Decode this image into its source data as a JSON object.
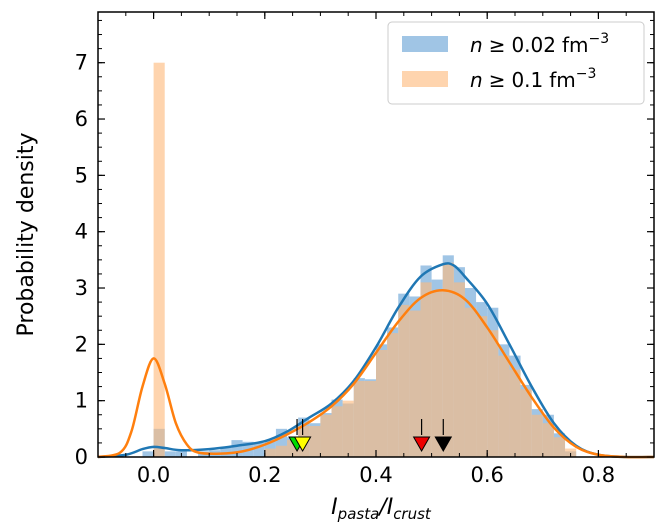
{
  "chart_data": {
    "type": "histogram+kde",
    "xlabel": {
      "main": "I",
      "sub1": "pasta",
      "slash": "/I",
      "sub2": "crust"
    },
    "ylabel": "Probability density",
    "xlim": [
      -0.1,
      0.9
    ],
    "ylim": [
      0,
      7.9
    ],
    "xticks": [
      0.0,
      0.2,
      0.4,
      0.6,
      0.8
    ],
    "xtick_labels": [
      "0.0",
      "0.2",
      "0.4",
      "0.6",
      "0.8"
    ],
    "yticks": [
      0,
      1,
      2,
      3,
      4,
      5,
      6,
      7
    ],
    "ytick_labels": [
      "0",
      "1",
      "2",
      "3",
      "4",
      "5",
      "6",
      "7"
    ],
    "legend": {
      "position": "top-right",
      "entries": [
        {
          "math": "n",
          "rel": "≥",
          "value": "0.02",
          "unit": "fm",
          "exp": "−3"
        },
        {
          "math": "n",
          "rel": "≥",
          "value": "0.1",
          "unit": "fm",
          "exp": "−3"
        }
      ]
    },
    "series": [
      {
        "name": "n ≥ 0.02 fm^-3",
        "color": "#1f77b4",
        "fill": "#8fbbe0",
        "bin_width": 0.02,
        "bins": [
          [
            -0.02,
            0.0,
            0.1
          ],
          [
            0.0,
            0.02,
            0.5
          ],
          [
            0.02,
            0.04,
            0.1
          ],
          [
            0.04,
            0.06,
            0.1
          ],
          [
            0.08,
            0.1,
            0.1
          ],
          [
            0.1,
            0.12,
            0.12
          ],
          [
            0.12,
            0.14,
            0.16
          ],
          [
            0.14,
            0.16,
            0.3
          ],
          [
            0.16,
            0.18,
            0.27
          ],
          [
            0.18,
            0.2,
            0.25
          ],
          [
            0.2,
            0.22,
            0.3
          ],
          [
            0.22,
            0.24,
            0.5
          ],
          [
            0.24,
            0.26,
            0.35
          ],
          [
            0.26,
            0.28,
            0.7
          ],
          [
            0.28,
            0.3,
            0.6
          ],
          [
            0.3,
            0.32,
            0.78
          ],
          [
            0.32,
            0.34,
            1.02
          ],
          [
            0.34,
            0.36,
            0.95
          ],
          [
            0.36,
            0.38,
            1.4
          ],
          [
            0.38,
            0.4,
            1.38
          ],
          [
            0.4,
            0.42,
            2.0
          ],
          [
            0.42,
            0.44,
            2.3
          ],
          [
            0.44,
            0.46,
            2.9
          ],
          [
            0.46,
            0.48,
            2.85
          ],
          [
            0.48,
            0.5,
            3.4
          ],
          [
            0.5,
            0.52,
            3.15
          ],
          [
            0.52,
            0.54,
            3.58
          ],
          [
            0.54,
            0.56,
            3.37
          ],
          [
            0.56,
            0.58,
            3.0
          ],
          [
            0.58,
            0.6,
            2.75
          ],
          [
            0.6,
            0.62,
            2.65
          ],
          [
            0.62,
            0.64,
            2.0
          ],
          [
            0.64,
            0.66,
            1.8
          ],
          [
            0.66,
            0.68,
            1.28
          ],
          [
            0.68,
            0.7,
            0.85
          ],
          [
            0.7,
            0.72,
            0.75
          ],
          [
            0.72,
            0.74,
            0.42
          ],
          [
            0.74,
            0.76,
            0.1
          ]
        ],
        "kde": {
          "x": [
            -0.1,
            -0.05,
            -0.02,
            0.0,
            0.02,
            0.05,
            0.1,
            0.15,
            0.2,
            0.24,
            0.28,
            0.32,
            0.36,
            0.4,
            0.44,
            0.48,
            0.52,
            0.54,
            0.56,
            0.6,
            0.64,
            0.68,
            0.72,
            0.76,
            0.8,
            0.85,
            0.9
          ],
          "y": [
            0.0,
            0.04,
            0.14,
            0.18,
            0.16,
            0.12,
            0.14,
            0.2,
            0.28,
            0.45,
            0.7,
            0.95,
            1.35,
            1.95,
            2.65,
            3.2,
            3.42,
            3.4,
            3.2,
            2.72,
            2.0,
            1.25,
            0.6,
            0.2,
            0.04,
            0.0,
            0.0
          ]
        }
      },
      {
        "name": "n ≥ 0.1 fm^-3",
        "color": "#ff7f0e",
        "fill": "#fdb97d",
        "bin_width": 0.02,
        "bins": [
          [
            0.0,
            0.02,
            7.0
          ],
          [
            0.2,
            0.22,
            0.15
          ],
          [
            0.22,
            0.24,
            0.2
          ],
          [
            0.24,
            0.26,
            0.3
          ],
          [
            0.26,
            0.28,
            0.55
          ],
          [
            0.28,
            0.3,
            0.55
          ],
          [
            0.3,
            0.32,
            0.75
          ],
          [
            0.32,
            0.34,
            0.9
          ],
          [
            0.34,
            0.36,
            1.0
          ],
          [
            0.36,
            0.38,
            1.35
          ],
          [
            0.38,
            0.4,
            1.35
          ],
          [
            0.4,
            0.42,
            1.9
          ],
          [
            0.42,
            0.44,
            2.2
          ],
          [
            0.44,
            0.46,
            2.7
          ],
          [
            0.46,
            0.48,
            2.6
          ],
          [
            0.48,
            0.5,
            3.1
          ],
          [
            0.5,
            0.52,
            2.95
          ],
          [
            0.52,
            0.54,
            3.45
          ],
          [
            0.54,
            0.56,
            3.1
          ],
          [
            0.56,
            0.58,
            2.65
          ],
          [
            0.58,
            0.6,
            2.5
          ],
          [
            0.6,
            0.62,
            2.25
          ],
          [
            0.62,
            0.64,
            1.8
          ],
          [
            0.64,
            0.66,
            1.55
          ],
          [
            0.66,
            0.68,
            1.2
          ],
          [
            0.68,
            0.7,
            0.75
          ],
          [
            0.7,
            0.72,
            0.6
          ],
          [
            0.72,
            0.74,
            0.35
          ],
          [
            0.74,
            0.76,
            0.15
          ]
        ],
        "kde": {
          "x": [
            -0.1,
            -0.06,
            -0.04,
            -0.02,
            0.0,
            0.02,
            0.04,
            0.06,
            0.08,
            0.12,
            0.16,
            0.2,
            0.24,
            0.28,
            0.32,
            0.36,
            0.4,
            0.44,
            0.48,
            0.52,
            0.56,
            0.6,
            0.64,
            0.68,
            0.72,
            0.76,
            0.8,
            0.85,
            0.9
          ],
          "y": [
            0.0,
            0.08,
            0.45,
            1.25,
            1.75,
            1.3,
            0.6,
            0.22,
            0.08,
            0.06,
            0.1,
            0.22,
            0.4,
            0.62,
            0.9,
            1.3,
            1.85,
            2.4,
            2.82,
            2.96,
            2.8,
            2.3,
            1.68,
            1.06,
            0.52,
            0.18,
            0.04,
            0.0,
            0.0
          ]
        }
      }
    ],
    "markers": [
      {
        "x": 0.258,
        "color": "#00dd00",
        "arrow": true
      },
      {
        "x": 0.268,
        "color": "#ffff00",
        "arrow": true
      },
      {
        "x": 0.482,
        "color": "#ee0000",
        "arrow": true
      },
      {
        "x": 0.521,
        "color": "#000000",
        "arrow": true
      }
    ]
  }
}
